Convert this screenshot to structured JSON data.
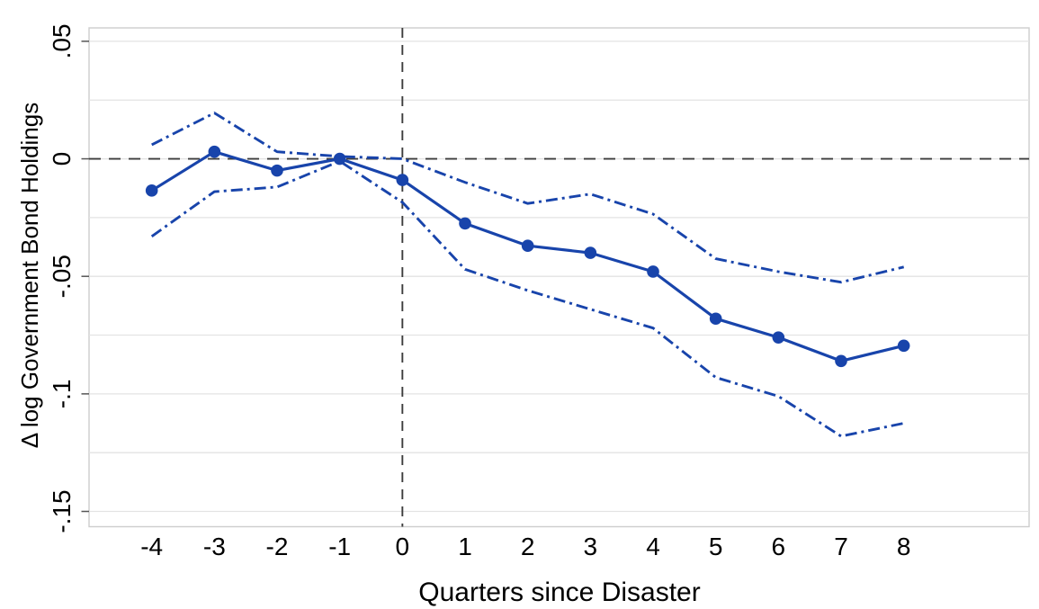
{
  "chart_data": {
    "type": "line",
    "title": "",
    "xlabel": "Quarters since Disaster",
    "ylabel": "Δ log Government Bond Holdings",
    "x": [
      -4,
      -3,
      -2,
      -1,
      0,
      1,
      2,
      3,
      4,
      5,
      6,
      7,
      8
    ],
    "series": [
      {
        "name": "point-estimate",
        "style": "solid-with-markers",
        "values": [
          -0.0135,
          0.003,
          -0.005,
          0.0,
          -0.009,
          -0.0275,
          -0.037,
          -0.04,
          -0.048,
          -0.068,
          -0.076,
          -0.086,
          -0.0795
        ]
      },
      {
        "name": "ci-upper",
        "style": "dash-dot",
        "values": [
          0.006,
          0.0195,
          0.003,
          0.001,
          0.0,
          -0.01,
          -0.019,
          -0.015,
          -0.0235,
          -0.0425,
          -0.048,
          -0.0525,
          -0.046
        ]
      },
      {
        "name": "ci-lower",
        "style": "dash-dot",
        "values": [
          -0.033,
          -0.014,
          -0.012,
          -0.001,
          -0.0185,
          -0.047,
          -0.056,
          -0.064,
          -0.072,
          -0.093,
          -0.101,
          -0.118,
          -0.1125
        ]
      }
    ],
    "xtick_labels": [
      "-4",
      "-3",
      "-2",
      "-1",
      "0",
      "1",
      "2",
      "3",
      "4",
      "5",
      "6",
      "7",
      "8"
    ],
    "ytick_labels": [
      ".05",
      "0",
      "-.05",
      "-.1",
      "-.15"
    ],
    "ytick_values": [
      0.05,
      0,
      -0.05,
      -0.1,
      -0.15
    ],
    "gridline_values": [
      0.05,
      0.025,
      0,
      -0.025,
      -0.05,
      -0.075,
      -0.1,
      -0.125,
      -0.15
    ],
    "xlim": [
      -5,
      10
    ],
    "ylim": [
      -0.1565,
      0.0557
    ],
    "ref_line_h": 0,
    "ref_line_v": 0,
    "grid": "horizontal-only",
    "legend": "none",
    "colors": {
      "series": "#1844ab",
      "grid": "#e3e3e3",
      "frame": "#cdcdcd",
      "ref_lines": "#3d3d3d",
      "text": "#000000",
      "background": "#ffffff"
    }
  }
}
